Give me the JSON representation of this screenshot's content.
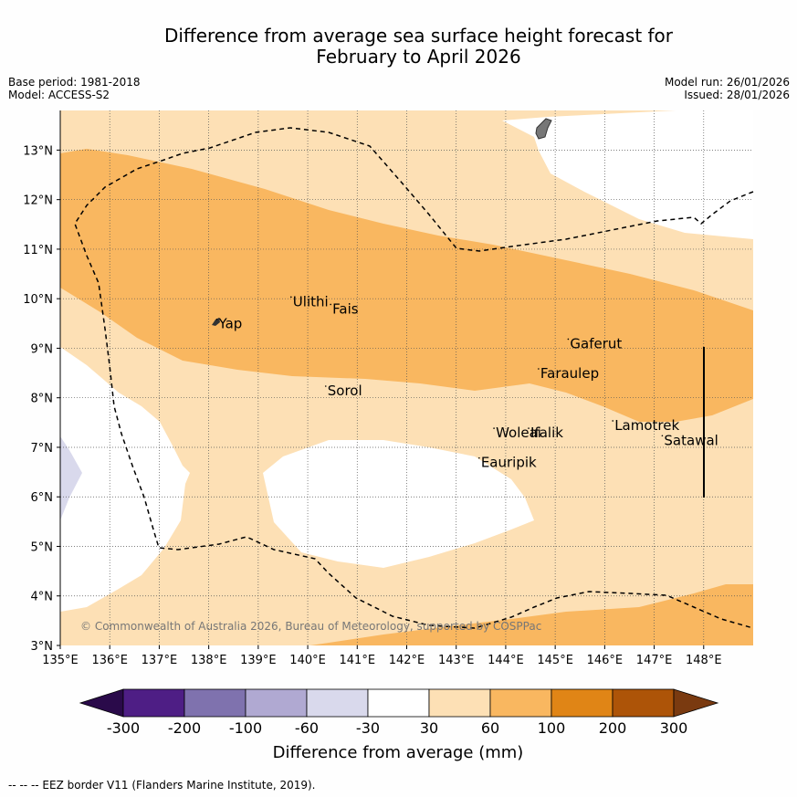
{
  "title": {
    "line1": "Difference from average sea surface height forecast for",
    "line2": "February to April 2026"
  },
  "meta": {
    "base_period": "Base period: 1981-2018",
    "model": "Model: ACCESS-S2",
    "model_run": "Model run: 26/01/2026",
    "issued": "Issued: 28/01/2026"
  },
  "axes": {
    "lon_labels": [
      "135°E",
      "136°E",
      "137°E",
      "138°E",
      "139°E",
      "140°E",
      "141°E",
      "142°E",
      "143°E",
      "144°E",
      "145°E",
      "146°E",
      "147°E",
      "148°E"
    ],
    "lat_labels": [
      "13°N",
      "12°N",
      "11°N",
      "10°N",
      "9°N",
      "8°N",
      "7°N",
      "6°N",
      "5°N",
      "4°N",
      "3°N"
    ],
    "lon_range": [
      135,
      149
    ],
    "lat_range": [
      3,
      13.8
    ]
  },
  "places": [
    {
      "name": "Yap",
      "lon": 138.2,
      "lat": 9.4
    },
    {
      "name": "Ulithi",
      "lon": 139.7,
      "lat": 9.85
    },
    {
      "name": "Fais",
      "lon": 140.5,
      "lat": 9.7
    },
    {
      "name": "Gaferut",
      "lon": 145.3,
      "lat": 9.0
    },
    {
      "name": "Faraulep",
      "lon": 144.7,
      "lat": 8.4
    },
    {
      "name": "Sorol",
      "lon": 140.4,
      "lat": 8.05
    },
    {
      "name": "Woleai",
      "lon": 143.8,
      "lat": 7.2
    },
    {
      "name": "Ifalik",
      "lon": 144.5,
      "lat": 7.2
    },
    {
      "name": "Lamotrek",
      "lon": 146.2,
      "lat": 7.35
    },
    {
      "name": "Satawal",
      "lon": 147.2,
      "lat": 7.05
    },
    {
      "name": "Eauripik",
      "lon": 143.5,
      "lat": 6.6
    }
  ],
  "copyright": "© Commonwealth of Australia 2026, Bureau of Meteorology, supported by COSPPac",
  "colorbar": {
    "title": "Difference from average (mm)",
    "ticks": [
      "-300",
      "-200",
      "-100",
      "-60",
      "-30",
      "30",
      "60",
      "100",
      "200",
      "300"
    ],
    "colors": [
      "#2a0a4a",
      "#4e1e85",
      "#7f72ae",
      "#b0a9d2",
      "#d9d9ec",
      "#ffffff",
      "#fde0b5",
      "#f9b760",
      "#e08516",
      "#ad5408",
      "#7a3a10"
    ]
  },
  "footer": "--  --  -- EEZ border V11 (Flanders Marine Institute, 2019)."
}
